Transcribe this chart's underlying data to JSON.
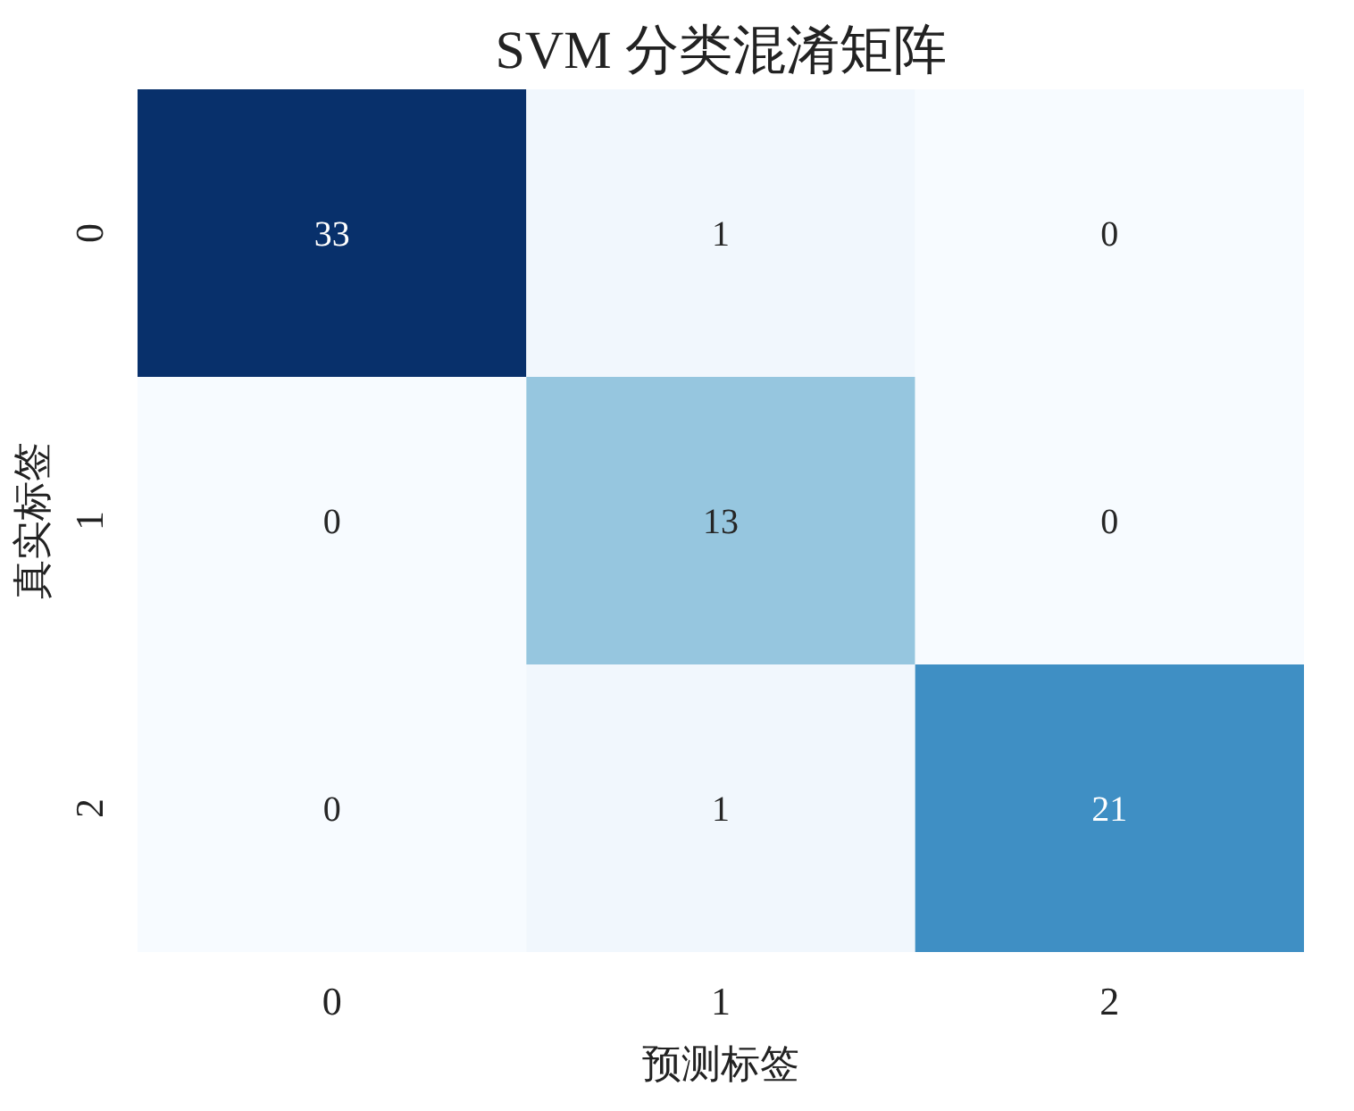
{
  "chart_data": {
    "type": "heatmap",
    "title": "SVM 分类混淆矩阵",
    "xlabel": "预测标签",
    "ylabel": "真实标签",
    "categories": [
      "0",
      "1",
      "2"
    ],
    "y_categories": [
      "0",
      "1",
      "2"
    ],
    "cells": [
      [
        33,
        1,
        0
      ],
      [
        0,
        13,
        0
      ],
      [
        0,
        1,
        21
      ]
    ],
    "data_labels": true
  }
}
